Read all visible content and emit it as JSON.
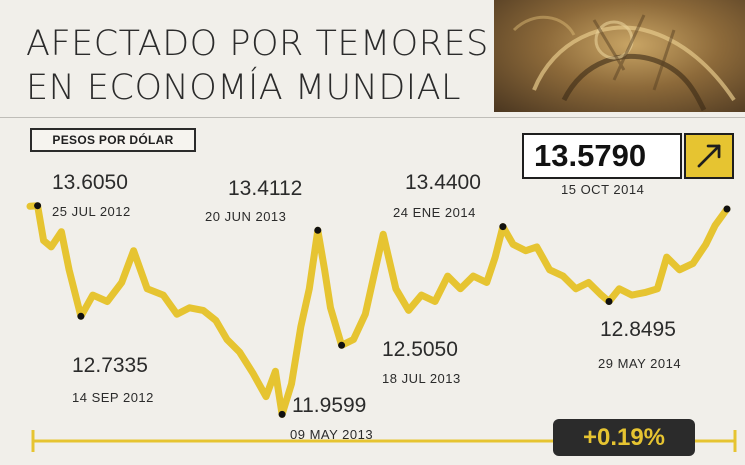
{
  "title": {
    "line1": "AFECTADO POR TEMORES",
    "line2": "EN ECONOMÍA MUNDIAL"
  },
  "colors": {
    "line": "#e6c431",
    "text": "#2b2b2b",
    "background": "#f1efea",
    "badge": "#2b2b2b"
  },
  "unit_label": "PESOS POR DÓLAR",
  "current": {
    "value": "13.5790",
    "date": "15 OCT 2014",
    "icon": "arrow-up-right-icon"
  },
  "change": "+0.19%",
  "chart_data": {
    "type": "line",
    "ylabel": "PESOS POR DÓLAR",
    "xlim": [
      "2012-07-16",
      "2014-10-15"
    ],
    "ylim": [
      11.9,
      13.65
    ],
    "series": [
      {
        "values": [
          [
            "2012-07-16",
            13.6
          ],
          [
            "2012-07-25",
            13.605
          ],
          [
            "2012-08-01",
            13.33
          ],
          [
            "2012-08-10",
            13.28
          ],
          [
            "2012-08-22",
            13.4
          ],
          [
            "2012-08-31",
            13.1
          ],
          [
            "2012-09-14",
            12.7335
          ],
          [
            "2012-09-28",
            12.9
          ],
          [
            "2012-10-15",
            12.85
          ],
          [
            "2012-11-01",
            13.0
          ],
          [
            "2012-11-15",
            13.25
          ],
          [
            "2012-12-01",
            12.95
          ],
          [
            "2012-12-20",
            12.9
          ],
          [
            "2013-01-05",
            12.75
          ],
          [
            "2013-01-20",
            12.8
          ],
          [
            "2013-02-05",
            12.78
          ],
          [
            "2013-02-20",
            12.7
          ],
          [
            "2013-03-05",
            12.55
          ],
          [
            "2013-03-20",
            12.45
          ],
          [
            "2013-04-05",
            12.28
          ],
          [
            "2013-04-20",
            12.1
          ],
          [
            "2013-05-01",
            12.3
          ],
          [
            "2013-05-09",
            11.9599
          ],
          [
            "2013-05-20",
            12.2
          ],
          [
            "2013-05-31",
            12.65
          ],
          [
            "2013-06-10",
            12.95
          ],
          [
            "2013-06-20",
            13.4112
          ],
          [
            "2013-06-28",
            13.1
          ],
          [
            "2013-07-05",
            12.8
          ],
          [
            "2013-07-18",
            12.505
          ],
          [
            "2013-08-01",
            12.55
          ],
          [
            "2013-08-15",
            12.75
          ],
          [
            "2013-08-25",
            13.05
          ],
          [
            "2013-09-05",
            13.38
          ],
          [
            "2013-09-20",
            12.95
          ],
          [
            "2013-10-05",
            12.78
          ],
          [
            "2013-10-20",
            12.9
          ],
          [
            "2013-11-05",
            12.85
          ],
          [
            "2013-11-20",
            13.05
          ],
          [
            "2013-12-05",
            12.95
          ],
          [
            "2013-12-20",
            13.05
          ],
          [
            "2014-01-05",
            13.0
          ],
          [
            "2014-01-15",
            13.2
          ],
          [
            "2014-01-24",
            13.44
          ],
          [
            "2014-02-05",
            13.3
          ],
          [
            "2014-02-20",
            13.25
          ],
          [
            "2014-03-05",
            13.28
          ],
          [
            "2014-03-20",
            13.1
          ],
          [
            "2014-04-05",
            13.05
          ],
          [
            "2014-04-20",
            12.95
          ],
          [
            "2014-05-05",
            13.0
          ],
          [
            "2014-05-20",
            12.9
          ],
          [
            "2014-05-29",
            12.8495
          ],
          [
            "2014-06-10",
            12.95
          ],
          [
            "2014-06-25",
            12.9
          ],
          [
            "2014-07-10",
            12.92
          ],
          [
            "2014-07-25",
            12.95
          ],
          [
            "2014-08-05",
            13.2
          ],
          [
            "2014-08-20",
            13.1
          ],
          [
            "2014-09-05",
            13.15
          ],
          [
            "2014-09-20",
            13.3
          ],
          [
            "2014-10-01",
            13.45
          ],
          [
            "2014-10-15",
            13.579
          ]
        ]
      }
    ],
    "annotations": [
      {
        "value": "13.6050",
        "date": "25 JUL 2012",
        "x": "2012-07-25",
        "y": 13.605
      },
      {
        "value": "12.7335",
        "date": "14 SEP 2012",
        "x": "2012-09-14",
        "y": 12.7335
      },
      {
        "value": "13.4112",
        "date": "20 JUN 2013",
        "x": "2013-06-20",
        "y": 13.4112
      },
      {
        "value": "11.9599",
        "date": "09 MAY 2013",
        "x": "2013-05-09",
        "y": 11.9599
      },
      {
        "value": "12.5050",
        "date": "18 JUL 2013",
        "x": "2013-07-18",
        "y": 12.505
      },
      {
        "value": "13.4400",
        "date": "24 ENE 2014",
        "x": "2014-01-24",
        "y": 13.44
      },
      {
        "value": "12.8495",
        "date": "29 MAY 2014",
        "x": "2014-05-29",
        "y": 12.8495
      },
      {
        "value": "13.5790",
        "date": "15 OCT 2014",
        "x": "2014-10-15",
        "y": 13.579
      }
    ]
  }
}
